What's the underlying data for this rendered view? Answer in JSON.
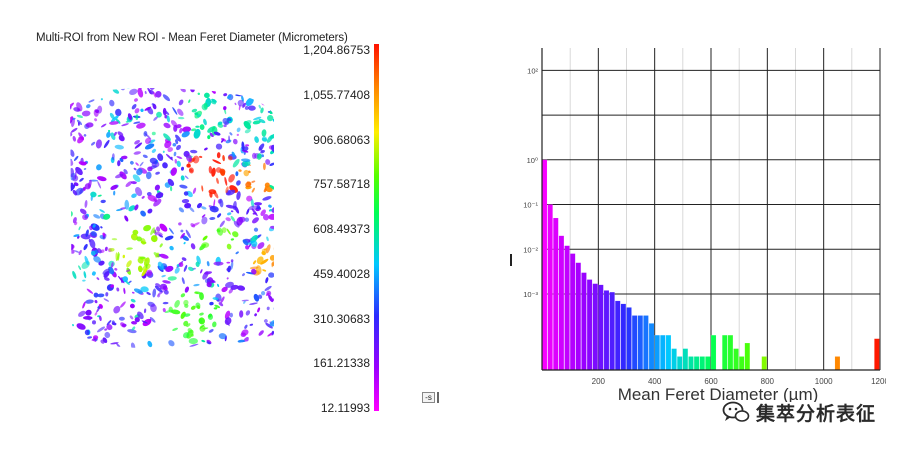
{
  "left_panel": {
    "title": "Multi-ROI from New ROI - Mean Feret Diameter (Micrometers)",
    "colorbar_labels": [
      "1,204.86753",
      "1,055.77408",
      "906.68063",
      "757.58718",
      "608.49373",
      "459.40028",
      "310.30683",
      "161.21338",
      "12.11993"
    ],
    "button_label": "-s"
  },
  "chart_data": {
    "type": "bar",
    "xlabel": "Mean Feret Diameter (µm)",
    "ylabel": "",
    "x_ticks": [
      200,
      400,
      600,
      800,
      1000,
      1200
    ],
    "y_ticks": [
      "10²",
      "10⁰",
      "10⁻¹",
      "10⁻²",
      "10⁻³"
    ],
    "y_scale": "log",
    "xlim": [
      0,
      1200
    ],
    "bin_width": 20,
    "colormap": [
      "#ff00ff",
      "#9900ff",
      "#2b2bff",
      "#00c8ff",
      "#00ff55",
      "#55ff00",
      "#ffee00",
      "#ff8800",
      "#ff1100"
    ],
    "grid": true,
    "bars": [
      {
        "x": 10,
        "y": 1.0
      },
      {
        "x": 30,
        "y": 0.1
      },
      {
        "x": 50,
        "y": 0.05
      },
      {
        "x": 70,
        "y": 0.02
      },
      {
        "x": 90,
        "y": 0.012
      },
      {
        "x": 110,
        "y": 0.008
      },
      {
        "x": 130,
        "y": 0.005
      },
      {
        "x": 150,
        "y": 0.003
      },
      {
        "x": 170,
        "y": 0.0021
      },
      {
        "x": 190,
        "y": 0.0017
      },
      {
        "x": 210,
        "y": 0.0016
      },
      {
        "x": 230,
        "y": 0.0012
      },
      {
        "x": 250,
        "y": 0.0011
      },
      {
        "x": 270,
        "y": 0.0007
      },
      {
        "x": 290,
        "y": 0.0006
      },
      {
        "x": 310,
        "y": 0.0005
      },
      {
        "x": 330,
        "y": 0.00033
      },
      {
        "x": 350,
        "y": 0.00033
      },
      {
        "x": 370,
        "y": 0.00033
      },
      {
        "x": 390,
        "y": 0.00022
      },
      {
        "x": 410,
        "y": 0.00012
      },
      {
        "x": 430,
        "y": 0.00012
      },
      {
        "x": 450,
        "y": 0.00012
      },
      {
        "x": 470,
        "y": 6e-05
      },
      {
        "x": 490,
        "y": 4e-05
      },
      {
        "x": 510,
        "y": 6e-05
      },
      {
        "x": 530,
        "y": 4e-05
      },
      {
        "x": 550,
        "y": 4e-05
      },
      {
        "x": 570,
        "y": 4e-05
      },
      {
        "x": 590,
        "y": 4e-05
      },
      {
        "x": 610,
        "y": 0.00012
      },
      {
        "x": 630,
        "y": 2e-05
      },
      {
        "x": 650,
        "y": 0.00012
      },
      {
        "x": 670,
        "y": 0.00012
      },
      {
        "x": 690,
        "y": 6e-05
      },
      {
        "x": 710,
        "y": 4e-05
      },
      {
        "x": 730,
        "y": 8e-05
      },
      {
        "x": 750,
        "y": 2e-05
      },
      {
        "x": 790,
        "y": 4e-05
      },
      {
        "x": 830,
        "y": 2e-05
      },
      {
        "x": 850,
        "y": 2e-05
      },
      {
        "x": 870,
        "y": 2e-05
      },
      {
        "x": 890,
        "y": 2e-05
      },
      {
        "x": 910,
        "y": 2e-05
      },
      {
        "x": 930,
        "y": 2e-05
      },
      {
        "x": 950,
        "y": 2e-05
      },
      {
        "x": 970,
        "y": 2e-05
      },
      {
        "x": 990,
        "y": 2e-05
      },
      {
        "x": 1010,
        "y": 2e-05
      },
      {
        "x": 1030,
        "y": 2e-05
      },
      {
        "x": 1050,
        "y": 4e-05
      },
      {
        "x": 1110,
        "y": 2e-05
      },
      {
        "x": 1190,
        "y": 0.0001
      }
    ]
  },
  "watermark": {
    "text": "集萃分析表征",
    "icon": "wechat-icon"
  }
}
